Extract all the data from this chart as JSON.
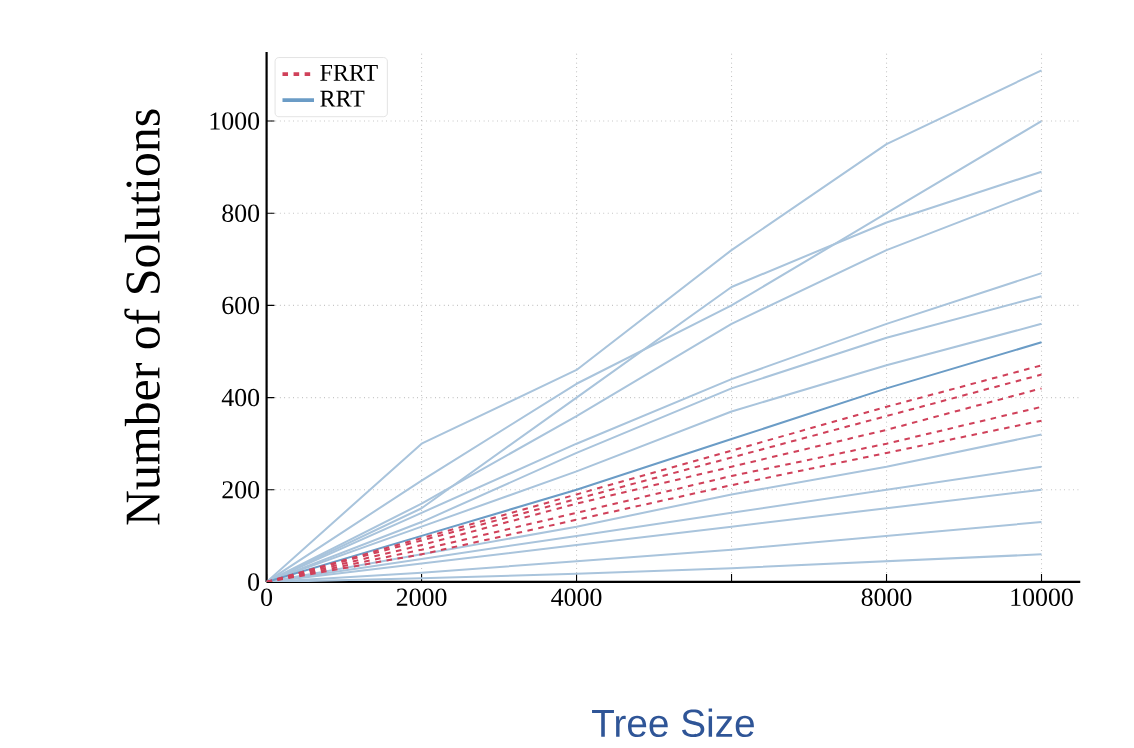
{
  "chart_data": {
    "type": "line",
    "xlabel": "Tree Size",
    "ylabel": "Number of Solutions",
    "x": [
      0,
      2000,
      4000,
      6000,
      8000,
      10000
    ],
    "xlim": [
      0,
      10500
    ],
    "ylim": [
      0,
      1150
    ],
    "xticks": [
      0,
      2000,
      4000,
      {
        "value": 6000,
        "label": null
      },
      8000,
      10000
    ],
    "yticks": [
      0,
      200,
      400,
      600,
      800,
      1000
    ],
    "grid": true,
    "legend": "top left",
    "series": [
      {
        "name": "FRRT",
        "color": "#d0415a",
        "line_style": "dashed",
        "values": [
          0,
          80,
          170,
          250,
          330,
          420
        ]
      },
      {
        "color": "#d0415a",
        "line_style": "dashed",
        "values": [
          0,
          90,
          180,
          270,
          360,
          450
        ]
      },
      {
        "color": "#d0415a",
        "line_style": "dashed",
        "values": [
          0,
          70,
          150,
          230,
          300,
          380
        ]
      },
      {
        "color": "#d0415a",
        "line_style": "dashed",
        "values": [
          0,
          95,
          190,
          285,
          380,
          470
        ]
      },
      {
        "color": "#d0415a",
        "line_style": "dashed",
        "values": [
          0,
          60,
          135,
          210,
          280,
          350
        ]
      },
      {
        "name": "RRT",
        "color": "#6b9cc6",
        "line_style": "solid",
        "values": [
          0,
          100,
          200,
          310,
          420,
          520
        ]
      },
      {
        "color": "#a9c4dc",
        "line_style": "solid",
        "values": [
          0,
          300,
          460,
          720,
          950,
          1110
        ]
      },
      {
        "color": "#a9c4dc",
        "line_style": "solid",
        "values": [
          0,
          220,
          430,
          600,
          800,
          1000
        ]
      },
      {
        "color": "#a9c4dc",
        "line_style": "solid",
        "values": [
          0,
          160,
          400,
          640,
          780,
          890
        ]
      },
      {
        "color": "#a9c4dc",
        "line_style": "solid",
        "values": [
          0,
          170,
          360,
          560,
          720,
          850
        ]
      },
      {
        "color": "#a9c4dc",
        "line_style": "solid",
        "values": [
          0,
          150,
          300,
          440,
          560,
          670
        ]
      },
      {
        "color": "#a9c4dc",
        "line_style": "solid",
        "values": [
          0,
          130,
          280,
          420,
          530,
          620
        ]
      },
      {
        "color": "#a9c4dc",
        "line_style": "solid",
        "values": [
          0,
          120,
          240,
          370,
          470,
          560
        ]
      },
      {
        "color": "#a9c4dc",
        "line_style": "solid",
        "values": [
          0,
          60,
          120,
          190,
          250,
          320
        ]
      },
      {
        "color": "#a9c4dc",
        "line_style": "solid",
        "values": [
          0,
          50,
          100,
          150,
          200,
          250
        ]
      },
      {
        "color": "#a9c4dc",
        "line_style": "solid",
        "values": [
          0,
          40,
          80,
          120,
          160,
          200
        ]
      },
      {
        "color": "#a9c4dc",
        "line_style": "solid",
        "values": [
          0,
          20,
          45,
          70,
          100,
          130
        ]
      },
      {
        "color": "#a9c4dc",
        "line_style": "solid",
        "values": [
          0,
          8,
          18,
          30,
          45,
          60
        ]
      }
    ]
  }
}
